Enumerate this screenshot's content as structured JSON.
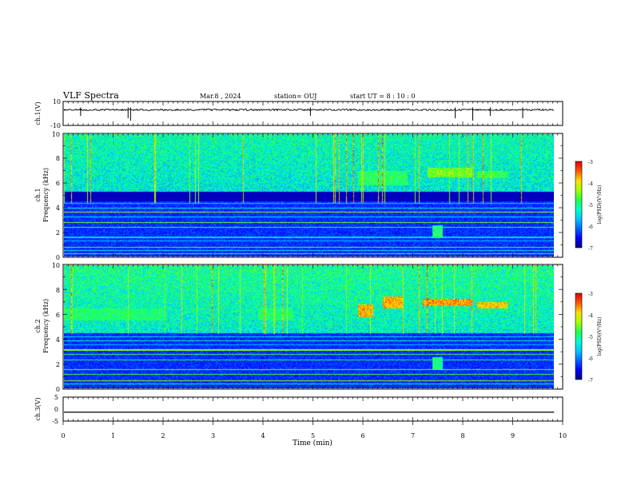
{
  "header": {
    "title": "VLF Spectra",
    "date": "Mar.8 , 2024",
    "station": "station= OUJ",
    "start": "start UT = 8 : 10 : 0"
  },
  "colorbar": {
    "label": "log(PSD)(V²/Hz)",
    "ticks": [
      "-3",
      "-4",
      "-5",
      "-6",
      "-7"
    ]
  },
  "colors": {
    "colormap": [
      "#000088",
      "#0000ff",
      "#0066ff",
      "#00c8ff",
      "#00ffcc",
      "#22ff44",
      "#aaff00",
      "#ffdd00",
      "#ff5500",
      "#dd0000"
    ],
    "trace": "#000000"
  },
  "chart_data": [
    {
      "type": "line",
      "id": "ch1_waveform",
      "ylabel": "ch.1(V)",
      "ylim": [
        -10,
        10
      ],
      "yticks": [
        "10",
        "-10"
      ],
      "xlim": [
        0,
        10
      ],
      "series": [
        {
          "baseline": 3,
          "noise_amplitude": 0.7,
          "spikes_min": [
            0.35,
            1.3,
            1.35,
            4.95,
            7.85,
            8.2,
            8.55,
            9.2
          ]
        }
      ]
    },
    {
      "type": "heatmap",
      "id": "ch1_spectrogram",
      "ylabel": "ch.1 Frequency (kHz)",
      "ylim": [
        0,
        10
      ],
      "yticks": [
        "0",
        "2",
        "4",
        "6",
        "8",
        "10"
      ],
      "xlim": [
        0,
        9.83
      ],
      "zlabel": "log(PSD)(V²/Hz)",
      "zlim": [
        -7,
        -3
      ],
      "features": [
        {
          "kind": "broadband_noise",
          "freq_khz": [
            5,
            10
          ],
          "level": -5.4
        },
        {
          "kind": "quiet_band",
          "freq_khz": [
            4.5,
            5.3
          ],
          "level": -6.8
        },
        {
          "kind": "emission",
          "t_min": [
            5.9,
            6.9
          ],
          "freq_khz": [
            5.8,
            7.0
          ],
          "level": -4.9
        },
        {
          "kind": "emission",
          "t_min": [
            7.3,
            8.2
          ],
          "freq_khz": [
            6.5,
            7.3
          ],
          "level": -4.5
        },
        {
          "kind": "emission",
          "t_min": [
            8.3,
            8.9
          ],
          "freq_khz": [
            6.4,
            7.0
          ],
          "level": -4.8
        },
        {
          "kind": "burst",
          "t_min": [
            7.4,
            7.6
          ],
          "freq_khz": [
            1.5,
            2.5
          ],
          "level": -5.0
        }
      ],
      "lines_khz": [
        0.2,
        0.45,
        0.7,
        1.25,
        1.55,
        2.35,
        2.75,
        3.2,
        3.6,
        3.95,
        4.35
      ]
    },
    {
      "type": "heatmap",
      "id": "ch2_spectrogram",
      "ylabel": "ch.2 Frequency (kHz)",
      "ylim": [
        0,
        10
      ],
      "yticks": [
        "0",
        "2",
        "4",
        "6",
        "8",
        "10"
      ],
      "xlim": [
        0,
        9.83
      ],
      "zlabel": "log(PSD)(V²/Hz)",
      "zlim": [
        -7,
        -3
      ],
      "features": [
        {
          "kind": "broadband_noise",
          "freq_khz": [
            4.5,
            10
          ],
          "level": -5.3
        },
        {
          "kind": "band",
          "t_min": [
            0,
            2.0
          ],
          "freq_khz": [
            5.5,
            6.5
          ],
          "level": -5.0
        },
        {
          "kind": "band",
          "t_min": [
            3.9,
            4.6
          ],
          "freq_khz": [
            5.5,
            6.5
          ],
          "level": -5.0
        },
        {
          "kind": "emission",
          "t_min": [
            5.9,
            6.2
          ],
          "freq_khz": [
            5.8,
            6.8
          ],
          "level": -3.8
        },
        {
          "kind": "emission",
          "t_min": [
            6.4,
            6.8
          ],
          "freq_khz": [
            6.5,
            7.5
          ],
          "level": -3.8
        },
        {
          "kind": "emission",
          "t_min": [
            7.2,
            8.2
          ],
          "freq_khz": [
            6.7,
            7.3
          ],
          "level": -3.7
        },
        {
          "kind": "emission",
          "t_min": [
            8.3,
            8.9
          ],
          "freq_khz": [
            6.5,
            7.0
          ],
          "level": -3.9
        },
        {
          "kind": "burst",
          "t_min": [
            7.4,
            7.6
          ],
          "freq_khz": [
            1.5,
            2.5
          ],
          "level": -5.0
        }
      ],
      "lines_khz": [
        0.35,
        0.6,
        1.1,
        1.5,
        2.3,
        2.75,
        3.1,
        3.55,
        3.85,
        4.2
      ]
    },
    {
      "type": "line",
      "id": "ch3_waveform",
      "ylabel": "ch.3(V)",
      "ylim": [
        -5,
        5
      ],
      "yticks": [
        "5",
        "0",
        "-5"
      ],
      "xlim": [
        0,
        10
      ],
      "xlabel": "Time (min)",
      "xticks": [
        "0",
        "1",
        "2",
        "3",
        "4",
        "5",
        "6",
        "7",
        "8",
        "9",
        "10"
      ],
      "series": [
        {
          "constant": -1.3
        }
      ]
    }
  ]
}
